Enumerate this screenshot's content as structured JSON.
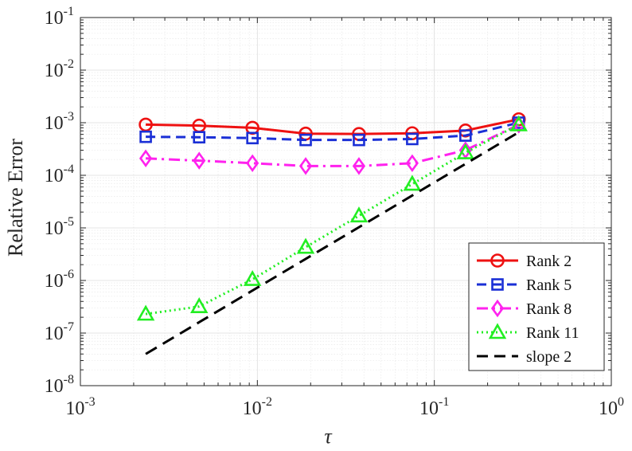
{
  "chart_data": {
    "type": "line",
    "xscale": "log",
    "yscale": "log",
    "xlim": [
      0.001,
      1
    ],
    "ylim": [
      1e-08,
      0.1
    ],
    "xlabel": "τ",
    "ylabel": "Relative Error",
    "grid": true,
    "minor_grid": true,
    "legend_position": "bottom-right",
    "x_ticks": [
      {
        "value": 0.001,
        "base": "10",
        "exp": "-3"
      },
      {
        "value": 0.01,
        "base": "10",
        "exp": "-2"
      },
      {
        "value": 0.1,
        "base": "10",
        "exp": "-1"
      },
      {
        "value": 1,
        "base": "10",
        "exp": "0"
      }
    ],
    "y_ticks": [
      {
        "value": 1e-08,
        "base": "10",
        "exp": "-8"
      },
      {
        "value": 1e-07,
        "base": "10",
        "exp": "-7"
      },
      {
        "value": 1e-06,
        "base": "10",
        "exp": "-6"
      },
      {
        "value": 1e-05,
        "base": "10",
        "exp": "-5"
      },
      {
        "value": 0.0001,
        "base": "10",
        "exp": "-4"
      },
      {
        "value": 0.001,
        "base": "10",
        "exp": "-3"
      },
      {
        "value": 0.01,
        "base": "10",
        "exp": "-2"
      },
      {
        "value": 0.1,
        "base": "10",
        "exp": "-1"
      }
    ],
    "x": [
      0.00234,
      0.00469,
      0.00938,
      0.01875,
      0.0375,
      0.075,
      0.15,
      0.3
    ],
    "series": [
      {
        "name": "Rank 2",
        "color": "#ee1111",
        "marker": "circle",
        "dash": "solid",
        "values": [
          0.00092,
          0.00088,
          0.0008,
          0.00062,
          0.00061,
          0.00063,
          0.00071,
          0.00116
        ]
      },
      {
        "name": "Rank 5",
        "color": "#1a2fd6",
        "marker": "square",
        "dash": "dashed",
        "values": [
          0.00054,
          0.00053,
          0.00051,
          0.00047,
          0.00047,
          0.00049,
          0.00057,
          0.001
        ]
      },
      {
        "name": "Rank 8",
        "color": "#ff22ee",
        "marker": "diamond",
        "dash": "dashdot",
        "values": [
          0.00021,
          0.00019,
          0.00017,
          0.00015,
          0.00015,
          0.00017,
          0.0003,
          0.00092
        ]
      },
      {
        "name": "Rank 11",
        "color": "#22ee22",
        "marker": "triangle",
        "dash": "dotted",
        "values": [
          2.3e-07,
          3.2e-07,
          1.05e-06,
          4.3e-06,
          1.7e-05,
          6.8e-05,
          0.00027,
          0.00092
        ]
      },
      {
        "name": "slope 2",
        "color": "#000000",
        "marker": "none",
        "dash": "longdash",
        "x": [
          0.00234,
          0.3
        ],
        "values": [
          4e-08,
          0.00066
        ]
      }
    ]
  }
}
